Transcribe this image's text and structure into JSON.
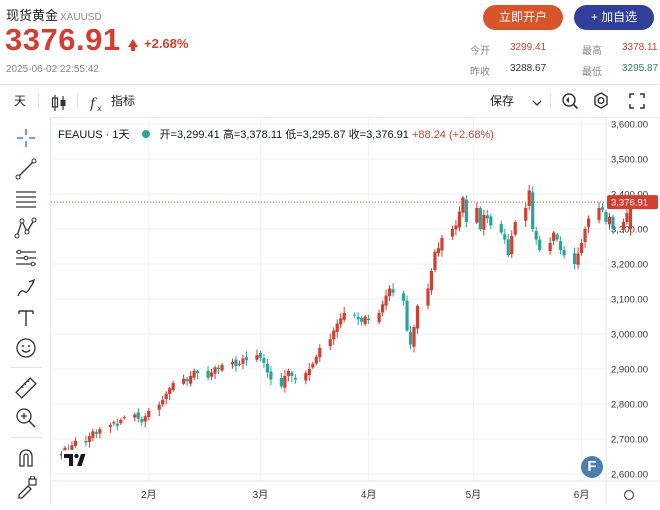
{
  "header": {
    "title": "现货黄金",
    "symbol_sub": "XAUUSD",
    "price": "3376.91",
    "change_pct": "+2.68%",
    "timestamp": "2025-06-02 22:55:42",
    "open_account_label": "立即开户",
    "add_watch_label": "+ 加自选",
    "stats": {
      "open_label": "今开",
      "open_value": "3299.41",
      "high_label": "最高",
      "high_value": "3378.11",
      "prev_label": "昨收",
      "prev_value": "3288.67",
      "low_label": "最低",
      "low_value": "3295.87"
    }
  },
  "toolbar": {
    "interval_label": "天",
    "indicators_label": "指标",
    "save_label": "保存"
  },
  "legend": {
    "symbol": "FEAUUS · 1天",
    "open": "开=3,299.41",
    "high": "高=3,378.11",
    "low": "低=3,295.87",
    "close": "收=3,376.91",
    "change": "+88.24 (+2.68%)"
  },
  "colors": {
    "up": "#d23f31",
    "down": "#26a69a",
    "accent": "#2f3f9a",
    "brand_orange": "#d8552b"
  },
  "sidebar_icons": [
    "crosshair-icon",
    "trendline-icon",
    "horizontal-lines-icon",
    "pattern-icon",
    "fib-icon",
    "brush-icon",
    "text-icon",
    "emoji-icon",
    "ruler-icon",
    "zoom-icon",
    "magnet-icon",
    "lock-draw-icon"
  ],
  "chart_data": {
    "type": "candlestick",
    "last_price_label": "3,376.91",
    "last_price": 3376.91,
    "ylim": [
      2580,
      3620
    ],
    "y_ticks": [
      "3,600.00",
      "3,500.00",
      "3,400.00",
      "3,300.00",
      "3,200.00",
      "3,100.00",
      "3,000.00",
      "2,900.00",
      "2,800.00",
      "2,700.00",
      "2,600.00"
    ],
    "y_tick_values": [
      3600,
      3500,
      3400,
      3300,
      3200,
      3100,
      3000,
      2900,
      2800,
      2700,
      2600
    ],
    "x_ticks": [
      "2月",
      "3月",
      "4月",
      "5月",
      "6月"
    ],
    "x_tick_days": [
      25,
      57,
      88,
      118,
      149
    ],
    "day_range": [
      -3,
      156
    ],
    "closes": [
      2658,
      2675,
      2668,
      2682,
      2695,
      2690,
      2708,
      2722,
      2715,
      2728,
      2740,
      2748,
      2738,
      2755,
      2762,
      2770,
      2758,
      2748,
      2765,
      2780,
      2798,
      2812,
      2830,
      2845,
      2860,
      2872,
      2865,
      2880,
      2895,
      2888,
      2875,
      2890,
      2905,
      2900,
      2912,
      2920,
      2908,
      2915,
      2930,
      2925,
      2940,
      2932,
      2918,
      2890,
      2870,
      2850,
      2880,
      2895,
      2880,
      2870,
      2888,
      2900,
      2915,
      2935,
      2960,
      2985,
      3010,
      3030,
      3045,
      3060,
      3055,
      3042,
      3035,
      3050,
      3040,
      3060,
      3085,
      3110,
      3130,
      3118,
      3095,
      3010,
      2970,
      3020,
      3080,
      3130,
      3180,
      3235,
      3245,
      3275,
      3300,
      3310,
      3350,
      3390,
      3320,
      3360,
      3300,
      3340,
      3330,
      3310,
      3290,
      3270,
      3225,
      3280,
      3320,
      3360,
      3410,
      3300,
      3270,
      3240,
      3260,
      3290,
      3270,
      3240,
      3225,
      3200,
      3230,
      3260,
      3300,
      3330,
      3360,
      3355,
      3320,
      3335,
      3300,
      3320,
      3345,
      3376.91
    ]
  }
}
